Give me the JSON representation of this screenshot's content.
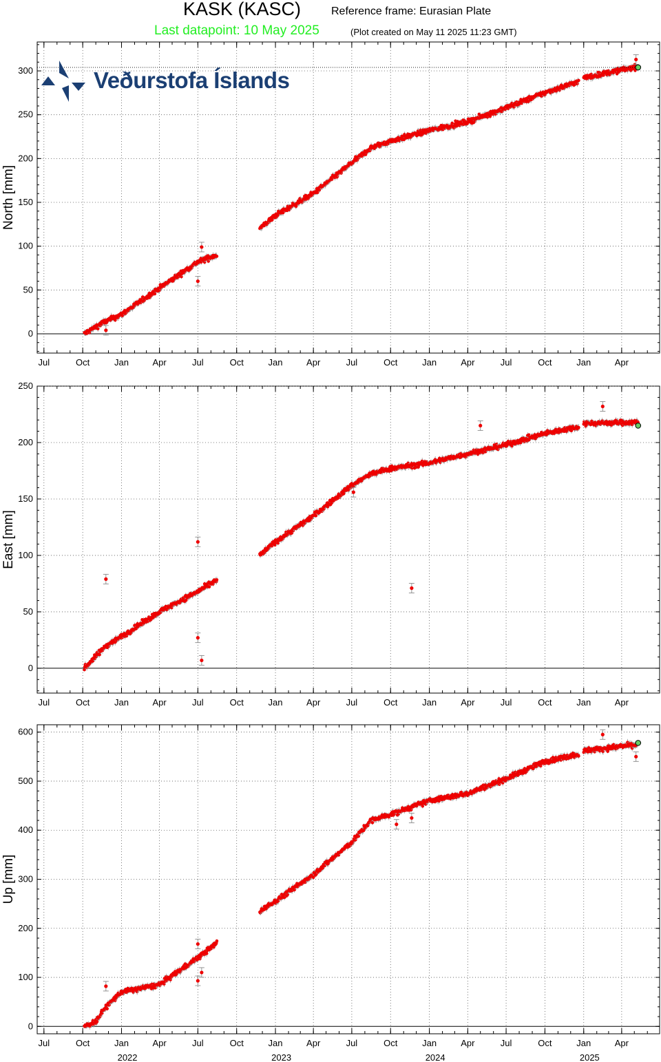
{
  "header": {
    "station": "KASK (KASC)",
    "reference": "Reference frame: Eurasian Plate",
    "last_datapoint": "Last datapoint: 10 May 2025",
    "created": "(Plot created on May 11 2025 11:23 GMT)"
  },
  "logo": {
    "text": "Veðurstofa Íslands",
    "icon": "imo-logo-icon"
  },
  "colors": {
    "data": "#ee0000",
    "last_point": "#66cc66",
    "errorbar": "#888888",
    "title_green": "#22ee22"
  },
  "chart_data": [
    {
      "type": "scatter",
      "name": "north",
      "ylabel": "North [mm]",
      "ylim": [
        -22,
        333
      ],
      "yticks": [
        0,
        50,
        100,
        150,
        200,
        250,
        300
      ],
      "grid": true,
      "segments": [
        {
          "x": [
            "2021-10-05",
            "2021-11-15",
            "2022-01-01",
            "2022-04-01",
            "2022-07-01",
            "2022-08-15"
          ],
          "y": [
            0,
            12,
            22,
            52,
            82,
            90
          ]
        },
        {
          "x": [
            "2022-11-25",
            "2023-01-01",
            "2023-04-01",
            "2023-07-01",
            "2023-08-15",
            "2023-10-01",
            "2024-01-01",
            "2024-04-01",
            "2024-07-01",
            "2024-10-01",
            "2024-12-20"
          ],
          "y": [
            120,
            135,
            160,
            195,
            212,
            220,
            232,
            242,
            258,
            275,
            288
          ]
        },
        {
          "x": [
            "2025-01-01",
            "2025-05-10"
          ],
          "y": [
            292,
            305
          ]
        }
      ],
      "outliers": [
        {
          "x": "2021-11-25",
          "y": 4
        },
        {
          "x": "2022-07-01",
          "y": 60
        },
        {
          "x": "2022-07-10",
          "y": 99
        },
        {
          "x": "2025-05-05",
          "y": 313
        }
      ],
      "last_point": {
        "x": "2025-05-10",
        "y": 304
      }
    },
    {
      "type": "scatter",
      "name": "east",
      "ylabel": "East [mm]",
      "ylim": [
        -22,
        250
      ],
      "yticks": [
        0,
        50,
        100,
        150,
        200,
        250
      ],
      "grid": true,
      "segments": [
        {
          "x": [
            "2021-10-05",
            "2021-11-25",
            "2022-01-01",
            "2022-04-01",
            "2022-07-01",
            "2022-08-15"
          ],
          "y": [
            0,
            20,
            28,
            50,
            68,
            78
          ]
        },
        {
          "x": [
            "2022-11-25",
            "2023-01-01",
            "2023-04-01",
            "2023-07-01",
            "2023-08-15",
            "2023-10-01",
            "2024-01-01",
            "2024-04-01",
            "2024-07-01",
            "2024-10-01",
            "2024-12-20"
          ],
          "y": [
            100,
            112,
            135,
            162,
            172,
            177,
            182,
            190,
            198,
            208,
            214
          ]
        },
        {
          "x": [
            "2025-01-01",
            "2025-05-10"
          ],
          "y": [
            217,
            218
          ]
        }
      ],
      "outliers": [
        {
          "x": "2021-11-25",
          "y": 79
        },
        {
          "x": "2022-07-01",
          "y": 112
        },
        {
          "x": "2022-07-01",
          "y": 27
        },
        {
          "x": "2022-07-10",
          "y": 7
        },
        {
          "x": "2023-07-05",
          "y": 156
        },
        {
          "x": "2023-11-20",
          "y": 71
        },
        {
          "x": "2024-05-01",
          "y": 215
        },
        {
          "x": "2025-02-15",
          "y": 232
        }
      ],
      "last_point": {
        "x": "2025-05-10",
        "y": 215
      }
    },
    {
      "type": "scatter",
      "name": "up",
      "ylabel": "Up [mm]",
      "ylim": [
        -15,
        615
      ],
      "yticks": [
        0,
        100,
        200,
        300,
        400,
        500,
        600
      ],
      "grid": true,
      "segments": [
        {
          "x": [
            "2021-10-05",
            "2021-11-01",
            "2021-11-25",
            "2022-01-01",
            "2022-04-01",
            "2022-07-01",
            "2022-08-15"
          ],
          "y": [
            0,
            10,
            40,
            70,
            85,
            140,
            170
          ]
        },
        {
          "x": [
            "2022-11-25",
            "2023-01-01",
            "2023-04-01",
            "2023-07-01",
            "2023-08-15",
            "2023-10-01",
            "2024-01-01",
            "2024-04-01",
            "2024-07-01",
            "2024-10-01",
            "2024-12-20"
          ],
          "y": [
            235,
            255,
            310,
            375,
            420,
            432,
            460,
            475,
            505,
            540,
            555
          ]
        },
        {
          "x": [
            "2025-01-01",
            "2025-05-10"
          ],
          "y": [
            562,
            575
          ]
        }
      ],
      "outliers": [
        {
          "x": "2021-11-25",
          "y": 82
        },
        {
          "x": "2022-07-01",
          "y": 93
        },
        {
          "x": "2022-07-01",
          "y": 168
        },
        {
          "x": "2022-07-10",
          "y": 110
        },
        {
          "x": "2023-10-15",
          "y": 412
        },
        {
          "x": "2023-11-20",
          "y": 425
        },
        {
          "x": "2025-02-15",
          "y": 595
        },
        {
          "x": "2025-05-05",
          "y": 550
        }
      ],
      "last_point": {
        "x": "2025-05-10",
        "y": 578
      }
    }
  ],
  "x_axis": {
    "range": [
      "2021-06-15",
      "2025-06-30"
    ],
    "month_ticks": [
      {
        "x": "2021-07-01",
        "label": "Jul"
      },
      {
        "x": "2021-10-01",
        "label": "Oct"
      },
      {
        "x": "2022-01-01",
        "label": "Jan"
      },
      {
        "x": "2022-04-01",
        "label": "Apr"
      },
      {
        "x": "2022-07-01",
        "label": "Jul"
      },
      {
        "x": "2022-10-01",
        "label": "Oct"
      },
      {
        "x": "2023-01-01",
        "label": "Jan"
      },
      {
        "x": "2023-04-01",
        "label": "Apr"
      },
      {
        "x": "2023-07-01",
        "label": "Jul"
      },
      {
        "x": "2023-10-01",
        "label": "Oct"
      },
      {
        "x": "2024-01-01",
        "label": "Jan"
      },
      {
        "x": "2024-04-01",
        "label": "Apr"
      },
      {
        "x": "2024-07-01",
        "label": "Jul"
      },
      {
        "x": "2024-10-01",
        "label": "Oct"
      },
      {
        "x": "2025-01-01",
        "label": "Jan"
      },
      {
        "x": "2025-04-01",
        "label": "Apr"
      }
    ],
    "year_labels": [
      {
        "x": "2022-01-15",
        "label": "2022"
      },
      {
        "x": "2023-01-15",
        "label": "2023"
      },
      {
        "x": "2024-01-15",
        "label": "2024"
      },
      {
        "x": "2025-01-15",
        "label": "2025"
      }
    ]
  }
}
